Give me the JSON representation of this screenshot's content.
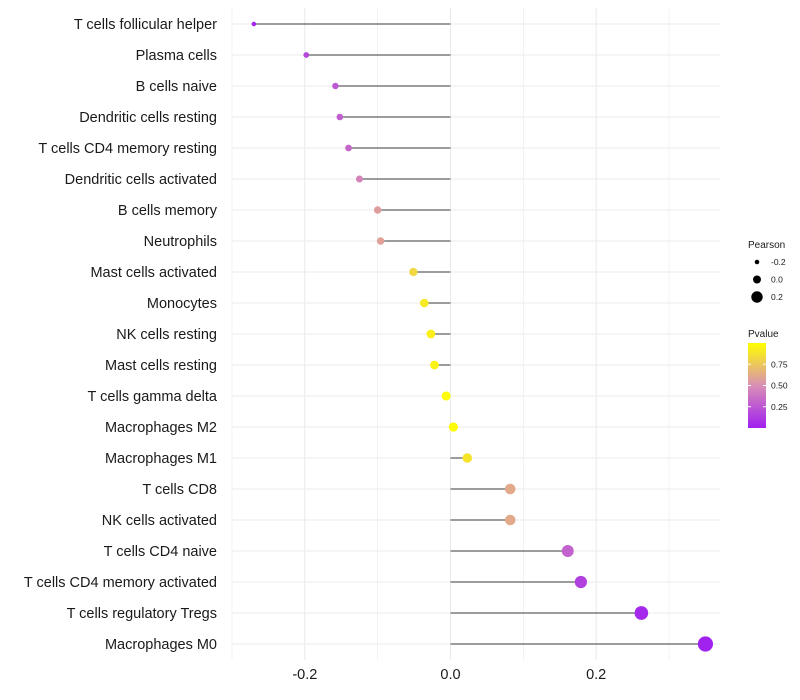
{
  "chart_data": {
    "type": "lollipop",
    "categories": [
      "T cells follicular helper",
      "Plasma cells",
      "B cells naive",
      "Dendritic cells resting",
      "T cells CD4 memory resting",
      "Dendritic cells activated",
      "B cells memory",
      "Neutrophils",
      "Mast cells activated",
      "Monocytes",
      "NK cells resting",
      "Mast cells resting",
      "T cells gamma delta",
      "Macrophages M2",
      "Macrophages M1",
      "T cells CD8",
      "NK cells activated",
      "T cells CD4 naive",
      "T cells CD4 memory activated",
      "T cells regulatory  Tregs ",
      "Macrophages M0"
    ],
    "values": [
      -0.27,
      -0.198,
      -0.158,
      -0.152,
      -0.14,
      -0.125,
      -0.1,
      -0.096,
      -0.051,
      -0.036,
      -0.027,
      -0.022,
      -0.006,
      0.004,
      0.023,
      0.082,
      0.082,
      0.161,
      0.179,
      0.262,
      0.35
    ],
    "pvalues": [
      0.02,
      0.18,
      0.26,
      0.28,
      0.32,
      0.45,
      0.56,
      0.58,
      0.82,
      0.9,
      0.93,
      0.94,
      0.98,
      0.985,
      0.88,
      0.62,
      0.62,
      0.3,
      0.15,
      0.04,
      0.01
    ],
    "xlim": [
      -0.3,
      0.37
    ],
    "xticks": [
      -0.2,
      0.0,
      0.2
    ],
    "xtick_labels": [
      "-0.2",
      "0.0",
      "0.2"
    ],
    "x_baseline": 0,
    "xlabel": "",
    "ylabel": "",
    "grid": true,
    "legend_size": {
      "title": "Pearson",
      "values": [
        -0.2,
        0.0,
        0.2
      ],
      "labels": [
        "-0.2",
        "0.0",
        "0.2"
      ]
    },
    "legend_color": {
      "title": "Pvalue",
      "ticks": [
        0.75,
        0.5,
        0.25
      ],
      "tick_labels": [
        "0.75",
        "0.50",
        "0.25"
      ],
      "range": [
        0.0,
        1.0
      ],
      "low_color": "#a020f0",
      "mid_color": "#d98fb5",
      "high_color": "#ffff00"
    },
    "stem_color": "#3a3a3a",
    "grid_color": "#ebebeb"
  }
}
